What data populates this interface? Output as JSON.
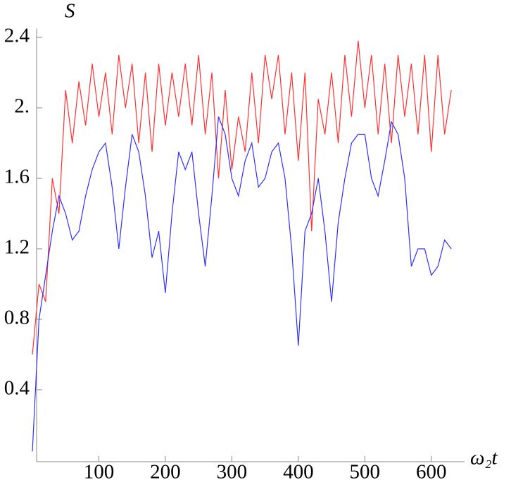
{
  "chart_data": {
    "type": "line",
    "x_label": "ω₂t",
    "y_label": "S",
    "x": [
      0,
      10,
      20,
      30,
      40,
      50,
      60,
      70,
      80,
      90,
      100,
      110,
      120,
      130,
      140,
      150,
      160,
      170,
      180,
      190,
      200,
      210,
      220,
      230,
      240,
      250,
      260,
      270,
      280,
      290,
      300,
      310,
      320,
      330,
      340,
      350,
      360,
      370,
      380,
      390,
      400,
      410,
      420,
      430,
      440,
      450,
      460,
      470,
      480,
      490,
      500,
      510,
      520,
      530,
      540,
      550,
      560,
      570,
      580,
      590,
      600,
      610,
      620,
      630
    ],
    "series": [
      {
        "color": "#ff3030",
        "values": [
          0.6,
          1.0,
          0.9,
          1.6,
          1.4,
          2.1,
          1.8,
          2.15,
          1.9,
          2.25,
          1.95,
          2.2,
          1.85,
          2.3,
          2.0,
          2.25,
          1.8,
          2.2,
          1.75,
          2.25,
          1.9,
          2.2,
          1.95,
          2.25,
          1.9,
          2.3,
          1.85,
          2.2,
          1.6,
          2.1,
          1.65,
          1.95,
          1.75,
          2.2,
          1.8,
          2.3,
          2.05,
          2.3,
          1.85,
          2.2,
          1.7,
          2.2,
          1.3,
          2.05,
          1.85,
          2.2,
          1.8,
          2.3,
          1.95,
          2.38,
          2.0,
          2.3,
          1.85,
          2.25,
          1.8,
          2.3,
          1.95,
          2.25,
          1.85,
          2.3,
          1.75,
          2.3,
          1.85,
          2.1
        ]
      },
      {
        "color": "#3030ff",
        "values": [
          0.05,
          0.8,
          1.05,
          1.3,
          1.5,
          1.4,
          1.25,
          1.3,
          1.5,
          1.65,
          1.75,
          1.8,
          1.55,
          1.2,
          1.55,
          1.85,
          1.75,
          1.5,
          1.15,
          1.3,
          0.95,
          1.4,
          1.75,
          1.65,
          1.75,
          1.4,
          1.1,
          1.5,
          1.95,
          1.85,
          1.6,
          1.5,
          1.7,
          1.8,
          1.55,
          1.6,
          1.75,
          1.8,
          1.6,
          1.2,
          0.65,
          1.3,
          1.4,
          1.6,
          1.3,
          0.9,
          1.35,
          1.6,
          1.8,
          1.85,
          1.85,
          1.6,
          1.5,
          1.7,
          1.92,
          1.85,
          1.6,
          1.1,
          1.2,
          1.2,
          1.05,
          1.1,
          1.25,
          1.2
        ]
      }
    ],
    "xlim": [
      0,
      650
    ],
    "xticks": [
      100,
      200,
      300,
      400,
      500,
      600
    ],
    "ylim": [
      0,
      2.45
    ],
    "yticks": [
      0.4,
      0.8,
      1.2,
      1.6,
      {
        "value": 2,
        "label": "2."
      },
      2.4
    ],
    "grid": false
  }
}
